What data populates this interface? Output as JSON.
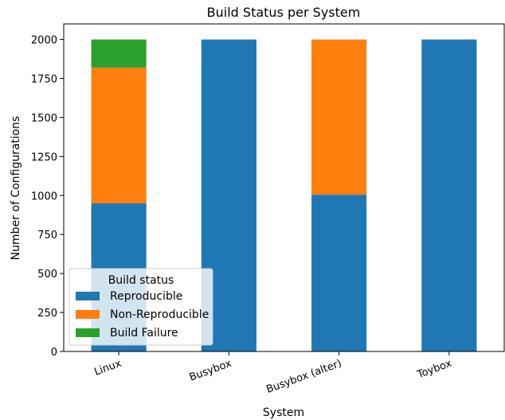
{
  "chart_data": {
    "type": "bar",
    "stacked": true,
    "title": "Build Status per System",
    "xlabel": "System",
    "ylabel": "Number of Configurations",
    "ylim": [
      0,
      2100
    ],
    "yticks": [
      0,
      250,
      500,
      750,
      1000,
      1250,
      1500,
      1750,
      2000
    ],
    "categories": [
      "Linux",
      "Busybox",
      "Busybox (alter)",
      "Toybox"
    ],
    "series": [
      {
        "name": "Reproducible",
        "color": "#1f77b4",
        "values": [
          950,
          2000,
          1005,
          2000
        ]
      },
      {
        "name": "Non-Reproducible",
        "color": "#ff7f0e",
        "values": [
          870,
          0,
          995,
          0
        ]
      },
      {
        "name": "Build Failure",
        "color": "#2ca02c",
        "values": [
          180,
          0,
          0,
          0
        ]
      }
    ],
    "legend": {
      "title": "Build status",
      "placement": "lower-left"
    },
    "grid": false
  }
}
